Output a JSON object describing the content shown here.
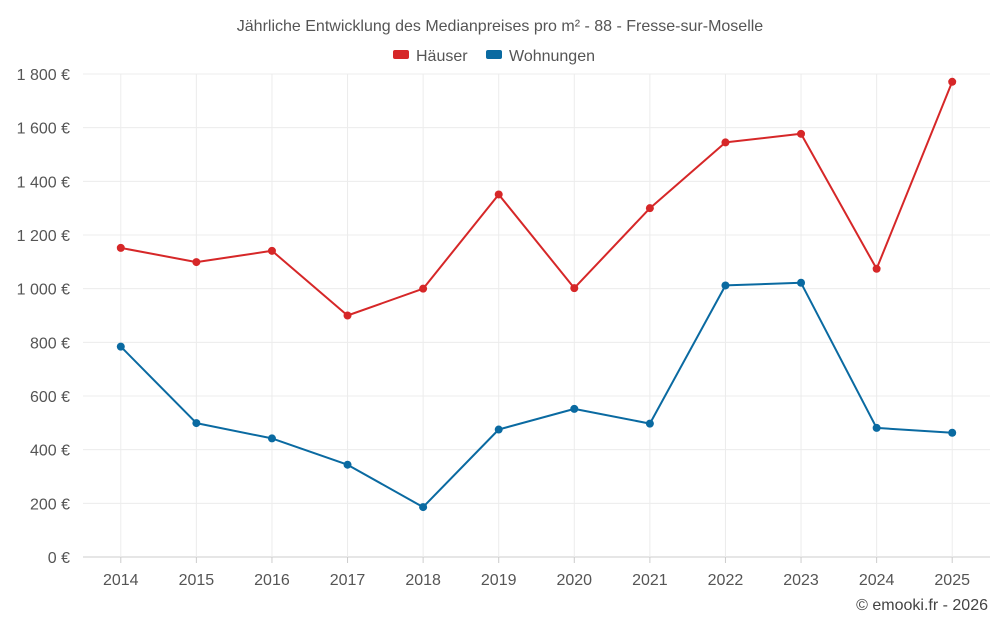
{
  "chart_data": {
    "type": "line",
    "title": "Jährliche Entwicklung des Medianpreises pro m² - 88 - Fresse-sur-Moselle",
    "xlabel": "",
    "ylabel": "",
    "categories": [
      "2014",
      "2015",
      "2016",
      "2017",
      "2018",
      "2019",
      "2020",
      "2021",
      "2022",
      "2023",
      "2024",
      "2025"
    ],
    "y_ticks": [
      0,
      200,
      400,
      600,
      800,
      1000,
      1200,
      1400,
      1600,
      1800
    ],
    "y_tick_labels": [
      "0 €",
      "200 €",
      "400 €",
      "600 €",
      "800 €",
      "1 000 €",
      "1 200 €",
      "1 400 €",
      "1 600 €",
      "1 800 €"
    ],
    "ylim": [
      0,
      1800
    ],
    "grid": true,
    "legend_position": "top-center",
    "series": [
      {
        "name": "Häuser",
        "color": "#d62728",
        "values": [
          1152,
          1099,
          1141,
          900,
          1000,
          1351,
          1002,
          1300,
          1545,
          1577,
          1074,
          1771
        ]
      },
      {
        "name": "Wohnungen",
        "color": "#0a6aa1",
        "values": [
          784,
          499,
          442,
          344,
          186,
          475,
          552,
          497,
          1012,
          1022,
          481,
          463
        ]
      }
    ]
  },
  "credit": "© emooki.fr - 2026"
}
